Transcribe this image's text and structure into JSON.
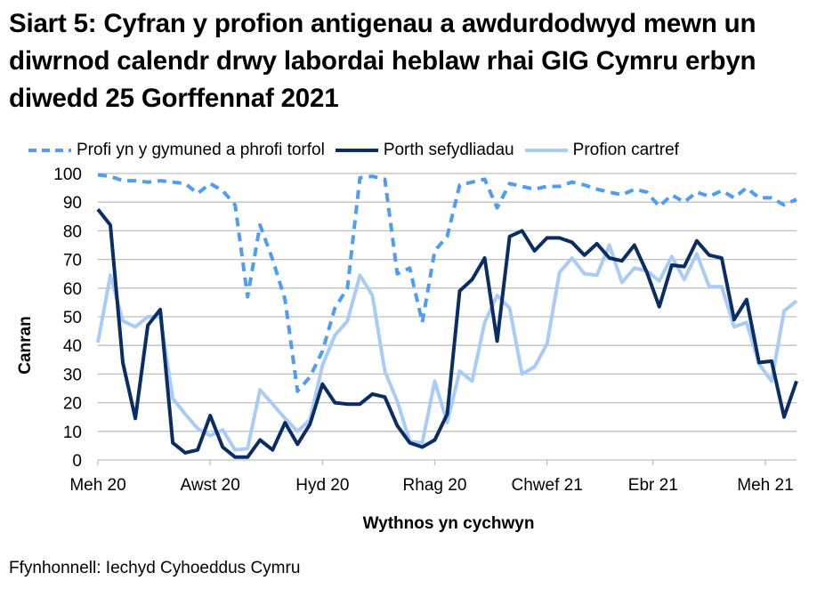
{
  "title": "Siart 5: Cyfran y profion antigenau a awdurdodwyd mewn un diwrnod calendr drwy labordai heblaw rhai GIG Cymru erbyn diwedd 25 Gorffennaf 2021",
  "legend": [
    {
      "label": "Profi yn y gymuned a phrofi torfol",
      "color": "#4f9cf2",
      "style": "dashed"
    },
    {
      "label": "Porth sefydliadau",
      "color": "#0a2d64",
      "style": "solid"
    },
    {
      "label": "Profion cartref",
      "color": "#a8cbf7",
      "style": "solid"
    }
  ],
  "axes": {
    "ylabel": "Canran",
    "xlabel": "Wythnos yn cychwyn",
    "yticks": [
      "0",
      "10",
      "20",
      "30",
      "40",
      "50",
      "60",
      "70",
      "80",
      "90",
      "100"
    ],
    "xticks": [
      "Meh 20",
      "Awst 20",
      "Hyd 20",
      "Rhag 20",
      "Chwef 21",
      "Ebr 21",
      "Meh 21"
    ]
  },
  "source": "Ffynhonnell: Iechyd Cyhoeddus Cymru",
  "chart_data": {
    "type": "line",
    "title": "Siart 5: Cyfran y profion antigenau a awdurdodwyd mewn un diwrnod calendr drwy labordai heblaw rhai GIG Cymru erbyn diwedd 25 Gorffennaf 2021",
    "xlabel": "Wythnos yn cychwyn",
    "ylabel": "Canran",
    "ylim": [
      0,
      100
    ],
    "grid": true,
    "legend_position": "top",
    "x_tick_labels": [
      "Meh 20",
      "Awst 20",
      "Hyd 20",
      "Rhag 20",
      "Chwef 21",
      "Ebr 21",
      "Meh 21"
    ],
    "x_tick_index": [
      0,
      9,
      18,
      27,
      36,
      44.5,
      53.5
    ],
    "n_points": 57,
    "series": [
      {
        "name": "Profi yn y gymuned a phrofi torfol",
        "color": "#4f9cf2",
        "dash": true,
        "values": [
          99.5,
          99,
          97.5,
          97.5,
          97,
          97.5,
          97,
          96.5,
          93,
          96.5,
          94,
          89,
          57,
          82,
          70,
          56,
          24,
          29,
          38,
          53,
          60,
          98.5,
          99,
          98,
          65,
          67,
          48,
          73,
          78,
          96,
          97,
          98,
          88,
          96.5,
          95.5,
          94.5,
          95.5,
          95.5,
          97,
          96,
          94.5,
          93.5,
          92.5,
          94.5,
          93.5,
          88.5,
          92.5,
          90,
          93.5,
          92,
          94,
          91.5,
          95,
          91.5,
          91.5,
          89,
          91
        ]
      },
      {
        "name": "Porth sefydliadau",
        "color": "#0a2d64",
        "dash": false,
        "values": [
          87.5,
          82,
          34,
          14.5,
          47,
          52.5,
          6,
          2.5,
          3.5,
          15.5,
          4.5,
          1,
          1,
          7,
          3.5,
          13,
          5.5,
          12.5,
          26.5,
          20,
          19.5,
          19.5,
          23,
          22,
          12,
          6,
          4.5,
          7,
          16,
          59,
          63,
          70.5,
          41.5,
          78,
          80,
          73,
          77.5,
          77.5,
          76,
          71.5,
          75.5,
          70.5,
          69.5,
          75,
          65.5,
          53.5,
          68,
          67.5,
          76.5,
          71.5,
          70.5,
          49,
          56,
          34,
          34.5,
          15,
          27.5
        ]
      },
      {
        "name": "Profion cartref",
        "color": "#a8cbf7",
        "dash": false,
        "values": [
          41,
          64.5,
          48.5,
          46.5,
          50,
          50,
          21.5,
          16,
          11,
          8.5,
          10.5,
          3.5,
          4,
          24.5,
          19.5,
          14.5,
          10,
          14,
          33,
          43.5,
          48.5,
          64.5,
          57.5,
          31,
          20.5,
          6.5,
          6,
          27.5,
          13,
          31,
          27.5,
          48,
          57.5,
          53,
          30,
          32.5,
          40.5,
          65.5,
          70.5,
          65,
          64.5,
          75,
          62,
          67,
          66,
          62.5,
          71,
          63,
          72,
          60.5,
          60.5,
          46.5,
          48,
          33.5,
          27.5,
          52,
          55.5
        ]
      }
    ]
  }
}
